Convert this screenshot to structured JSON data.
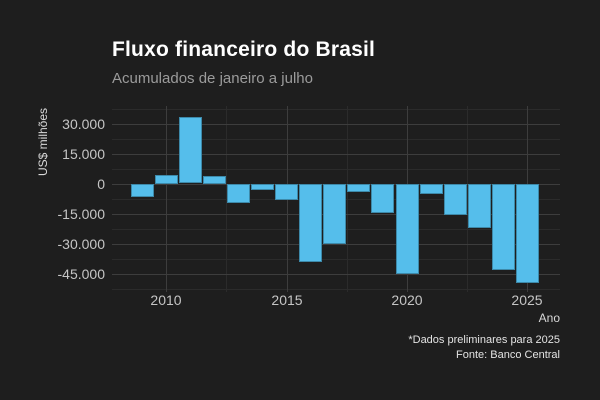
{
  "chart_data": {
    "type": "bar",
    "title": "Fluxo financeiro do Brasil",
    "subtitle": "Acumulados de janeiro a julho",
    "xlabel": "Ano",
    "ylabel": "US$ milhões",
    "caption": [
      "*Dados preliminares para 2025",
      "Fonte: Banco Central"
    ],
    "x": [
      2009,
      2010,
      2011,
      2012,
      2013,
      2014,
      2015,
      2016,
      2017,
      2018,
      2019,
      2020,
      2021,
      2022,
      2023,
      2024,
      2025
    ],
    "values": [
      -6500,
      4300,
      33200,
      4100,
      -9300,
      -3000,
      -7800,
      -39200,
      -30100,
      -4000,
      -14500,
      -45200,
      -4800,
      -15300,
      -22000,
      -42800,
      -49300
    ],
    "unit": "US$ milhões",
    "xlim": [
      2007.75,
      2026.35
    ],
    "ylim": [
      -54150,
      38850
    ],
    "y_ticks": [
      {
        "value": 30000,
        "label": "30.000"
      },
      {
        "value": 15000,
        "label": "15.000"
      },
      {
        "value": 0,
        "label": "0"
      },
      {
        "value": -15000,
        "label": "-15.000"
      },
      {
        "value": -30000,
        "label": "-30.000"
      },
      {
        "value": -45000,
        "label": "-45.000"
      }
    ],
    "y_minor": [
      37500,
      22500,
      7500,
      -7500,
      -22500,
      -37500,
      -52500
    ],
    "x_ticks": [
      {
        "value": 2010,
        "label": "2010"
      },
      {
        "value": 2015,
        "label": "2015"
      },
      {
        "value": 2020,
        "label": "2020"
      },
      {
        "value": 2025,
        "label": "2025"
      }
    ],
    "x_minor": [
      2012.5,
      2017.5,
      2022.5
    ],
    "grid": "on",
    "legend": "none"
  },
  "colors": {
    "background": "#1e1e1e",
    "bar_fill": "#55beeb",
    "grid_major": "#3d3d3d",
    "grid_minor": "#2b2b2b",
    "title_text": "#ffffff",
    "subtitle_text": "#9b9b9b",
    "axis_text": "#c5c5c5",
    "axis_title_text": "#d9d9d9",
    "caption_text": "#e3e3e3"
  }
}
